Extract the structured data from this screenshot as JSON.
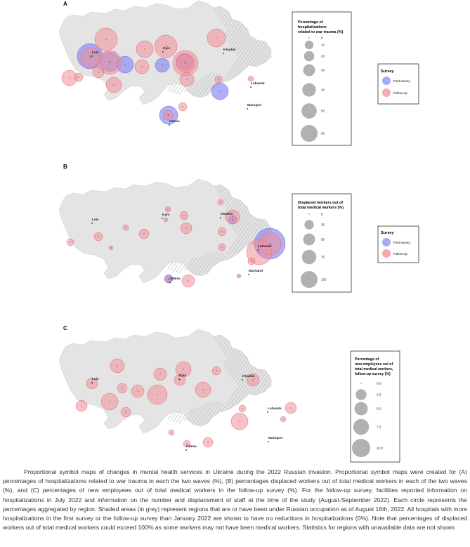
{
  "chart_data": [
    {
      "type": "map-proportional-symbol",
      "panel": "A",
      "legend": {
        "title": "Percentage of hospitalizations related to war trauma (%)",
        "title_lines": [
          "Percentage of",
          "hospitalizations",
          "related to war trauma (%)"
        ],
        "sizes": [
          0,
          10,
          20,
          30,
          40,
          50,
          60
        ]
      },
      "survey_legend": {
        "title": "Survey",
        "items": [
          {
            "label": "First survey",
            "color": "#8f8ff2"
          },
          {
            "label": "Follow-up",
            "color": "#f08e98"
          }
        ]
      },
      "cities": [
        "Lviv",
        "Kyiv",
        "Kharkiv",
        "Luhansk",
        "Mariupol",
        "Odesa"
      ],
      "series": [
        {
          "name": "First survey",
          "points": [
            [
              128,
              80,
              18
            ],
            [
              156,
              88,
              14
            ],
            [
              178,
              92,
              12
            ],
            [
              263,
              88,
              12
            ],
            [
              313,
              130,
              12
            ],
            [
              240,
              164,
              13
            ],
            [
              231,
              93,
              10
            ]
          ]
        },
        {
          "name": "Follow-up",
          "points": [
            [
              151,
              56,
              16
            ],
            [
              129,
              82,
              14
            ],
            [
              156,
              89,
              17
            ],
            [
              206,
              70,
              12
            ],
            [
              236,
              66,
              16
            ],
            [
              308,
              54,
              13
            ],
            [
              264,
              90,
              18
            ],
            [
              264,
              90,
              13
            ],
            [
              202,
              95,
              10
            ],
            [
              266,
              113,
              10
            ],
            [
              311,
              113,
              5
            ],
            [
              99,
              111,
              11
            ],
            [
              140,
              103,
              8
            ],
            [
              162,
              121,
              11
            ],
            [
              112,
              110,
              6
            ],
            [
              260,
              152,
              6
            ],
            [
              357,
              112,
              4
            ],
            [
              239,
              164,
              7
            ]
          ]
        }
      ]
    },
    {
      "type": "map-proportional-symbol",
      "panel": "B",
      "legend": {
        "title": "Displaced workers out of total medical workers (%)",
        "title_lines": [
          "Displaced workers out of",
          "total medical workers (%)"
        ],
        "sizes": [
          0,
          25,
          50,
          75,
          100
        ]
      },
      "survey_legend": {
        "title": "Survey",
        "items": [
          {
            "label": "First survey",
            "color": "#8f8ff2"
          },
          {
            "label": "Follow-up",
            "color": "#f08e98"
          }
        ]
      },
      "cities": [
        "Lviv",
        "Kyiv",
        "Kharkiv",
        "Luhansk",
        "Mariupol",
        "Odesa"
      ],
      "series": [
        {
          "name": "First survey",
          "points": [
            [
              384,
              347,
              22
            ],
            [
              240,
              397,
              6
            ],
            [
              331,
              313,
              6
            ]
          ]
        },
        {
          "name": "Follow-up",
          "points": [
            [
              331,
              309,
              10
            ],
            [
              369,
              359,
              18
            ],
            [
              384,
              347,
              16
            ],
            [
              268,
              400,
              9
            ],
            [
              265,
              325,
              8
            ],
            [
              262,
              307,
              6
            ],
            [
              205,
              333,
              7
            ],
            [
              179,
              324,
              4
            ],
            [
              140,
              337,
              6
            ],
            [
              100,
              345,
              5
            ],
            [
              158,
              353,
              3
            ],
            [
              239,
              298,
              4
            ],
            [
              236,
              313,
              3
            ],
            [
              314,
              288,
              4
            ],
            [
              316,
              330,
              6
            ],
            [
              316,
              352,
              5
            ],
            [
              358,
              372,
              5
            ],
            [
              340,
              393,
              3
            ],
            [
              240,
              398,
              4
            ]
          ]
        }
      ]
    },
    {
      "type": "map-proportional-symbol",
      "panel": "C",
      "legend": {
        "title": "Percentage of new employees out of total medical workers, follow-up survey (%)",
        "title_lines": [
          "Percentage of",
          "new employees out of",
          "total medical workers,",
          "follow-up survey (%)"
        ],
        "sizes": [
          0.0,
          2.5,
          5.0,
          7.5,
          10.0
        ],
        "size_labels": [
          "0.0",
          "2.5",
          "5.0",
          "7.5",
          "10.0"
        ]
      },
      "cities": [
        "Lviv",
        "Kyiv",
        "Kharkiv",
        "Luhansk",
        "Mariupol",
        "Odesa"
      ],
      "series": [
        {
          "name": "Follow-up",
          "points": [
            [
              167,
              521,
              10
            ],
            [
              131,
              546,
              8
            ],
            [
              174,
              553,
              7
            ],
            [
              156,
              572,
              12
            ],
            [
              179,
              587,
              7
            ],
            [
              116,
              578,
              8
            ],
            [
              196,
              557,
              9
            ],
            [
              224,
              562,
              14
            ],
            [
              228,
              533,
              9
            ],
            [
              261,
              526,
              11
            ],
            [
              256,
              541,
              8
            ],
            [
              289,
              555,
              11
            ],
            [
              308,
              528,
              6
            ],
            [
              345,
              582,
              5
            ],
            [
              341,
              600,
              12
            ],
            [
              360,
              541,
              9
            ],
            [
              414,
              581,
              8
            ],
            [
              266,
              632,
              5
            ],
            [
              296,
              630,
              7
            ],
            [
              244,
              616,
              4
            ],
            [
              403,
              597,
              4
            ]
          ]
        }
      ]
    }
  ],
  "caption": "Proportional symbol maps of changes in mental health services in Ukraine during the 2022 Russian invasion. Proportional symbol maps were created for (A) percentages of hospitalizations related to war trauma in each the two waves (%), (B) percentages displaced workers out of total medical workers in each of the two waves (%), and (C) percentages of new employees out of total medical workers in the follow-up survey (%). For the follow-up survey, facilities reported information on hospitalizations in July 2022 and information on the number and displacement of staff at the time of the study (August-September 2022). Each circle represents the percentages aggregated by region. Shaded areas (in grey) represent regions that are or have been under Russian occupation as of August 16th, 2022. All hospitals with more hospitalizations in the first survey or the follow-up survey than January 2022 are shown to have no reductions in hospitalizations (0%). Note that percentages of displaced workers out of total medical workers could exceed 100% as some workers may not have been medical workers. Statistics for regions with unavailable data are not shown"
}
